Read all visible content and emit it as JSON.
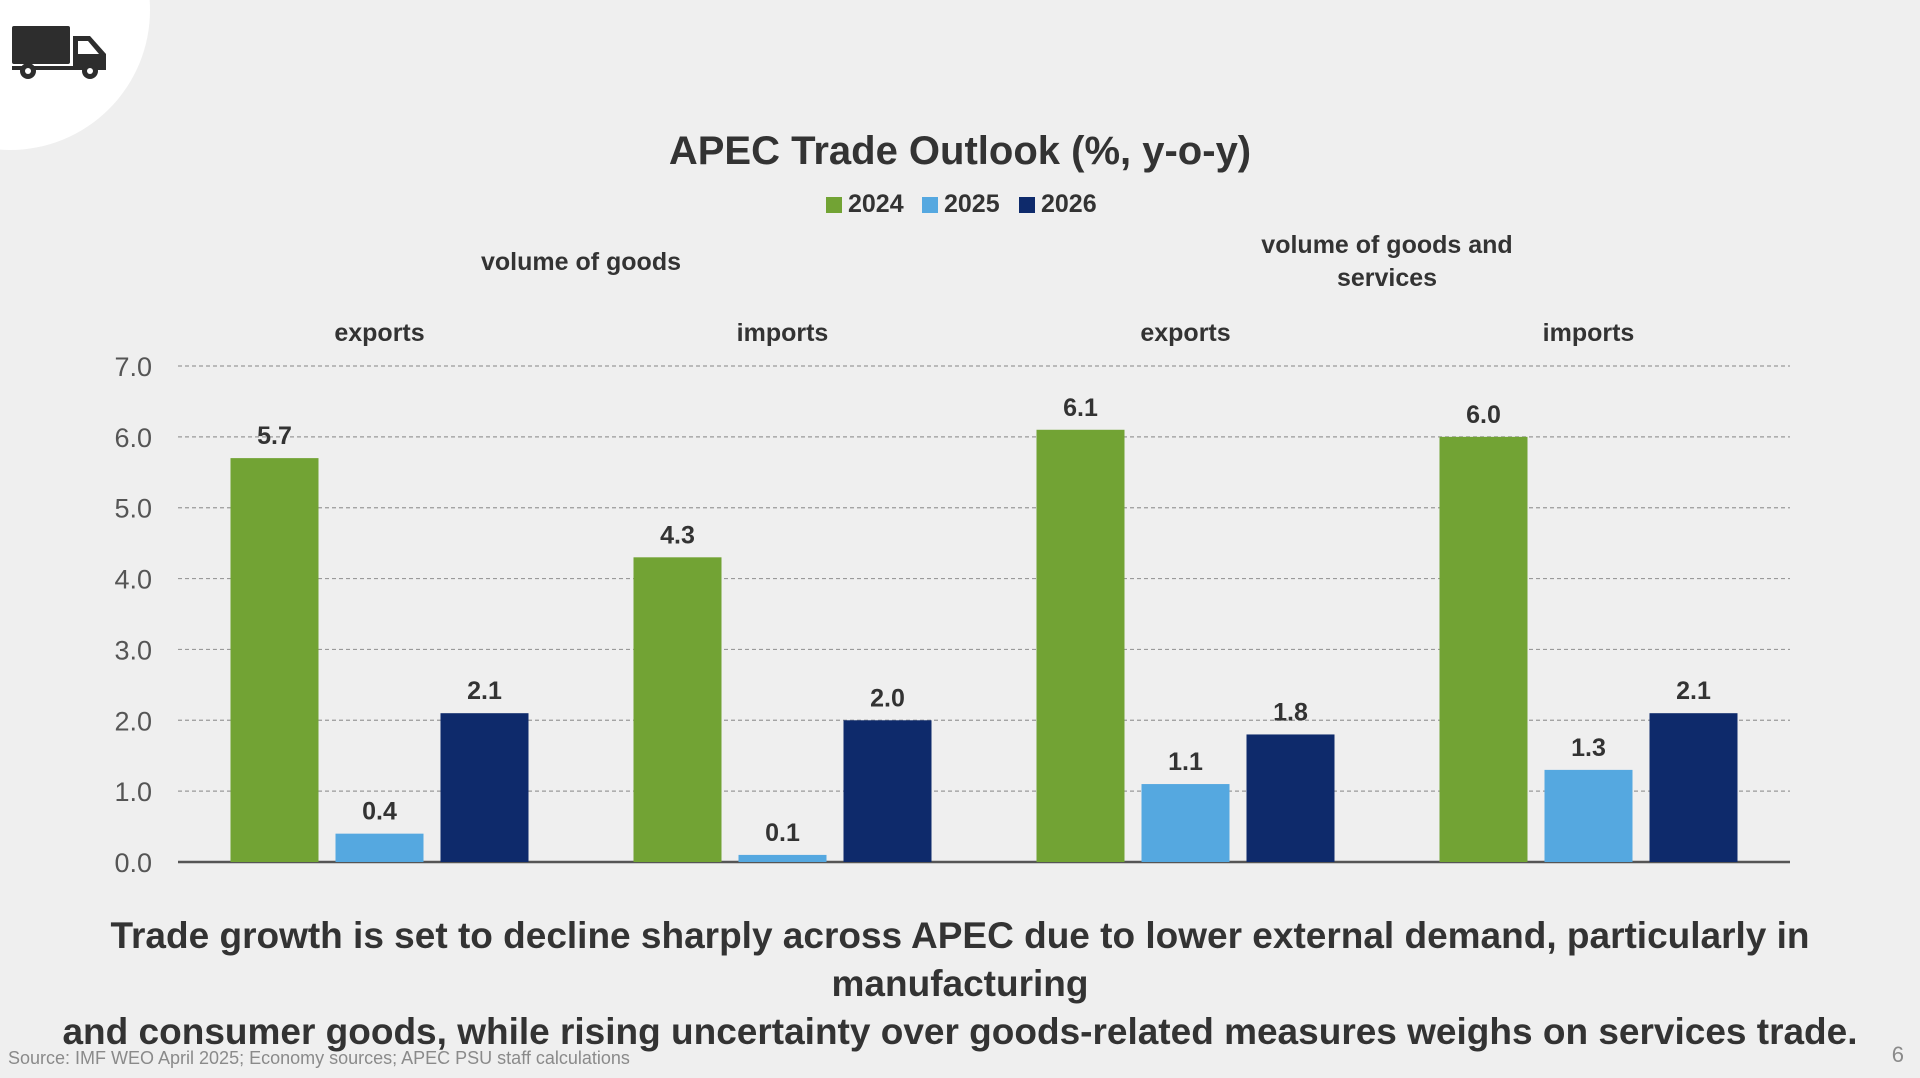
{
  "slide": {
    "icon": "truck-icon",
    "takeaway_line1": "Trade growth is set to decline sharply across APEC due to lower external demand, particularly in manufacturing",
    "takeaway_line2": "and consumer goods, while rising uncertainty over goods-related measures weighs on services trade.",
    "source": "Source: IMF WEO April 2025; Economy sources; APEC PSU staff calculations",
    "page_number": "6"
  },
  "chart_data": {
    "type": "bar",
    "title": "APEC Trade Outlook (%, y-o-y)",
    "xlabel": "",
    "ylabel": "",
    "ylim": [
      0,
      7
    ],
    "yticks": [
      "0.0",
      "1.0",
      "2.0",
      "3.0",
      "4.0",
      "5.0",
      "6.0",
      "7.0"
    ],
    "grid": true,
    "legend_position": "top-center",
    "super_categories": [
      {
        "lines": [
          "volume of goods"
        ],
        "categories": [
          "exports",
          "imports"
        ]
      },
      {
        "lines": [
          "volume of goods and",
          "services"
        ],
        "categories": [
          "exports",
          "imports"
        ]
      }
    ],
    "categories": [
      "exports",
      "imports",
      "exports",
      "imports"
    ],
    "series": [
      {
        "name": "2024",
        "color": "#72a334",
        "values": [
          5.7,
          4.3,
          6.1,
          6.0
        ],
        "labels": [
          "5.7",
          "4.3",
          "6.1",
          "6.0"
        ]
      },
      {
        "name": "2025",
        "color": "#55a8e0",
        "values": [
          0.4,
          0.1,
          1.1,
          1.3
        ],
        "labels": [
          "0.4",
          "0.1",
          "1.1",
          "1.3"
        ]
      },
      {
        "name": "2026",
        "color": "#0e2a6b",
        "values": [
          2.1,
          2.0,
          1.8,
          2.1
        ],
        "labels": [
          "2.1",
          "2.0",
          "1.8",
          "2.1"
        ]
      }
    ]
  }
}
